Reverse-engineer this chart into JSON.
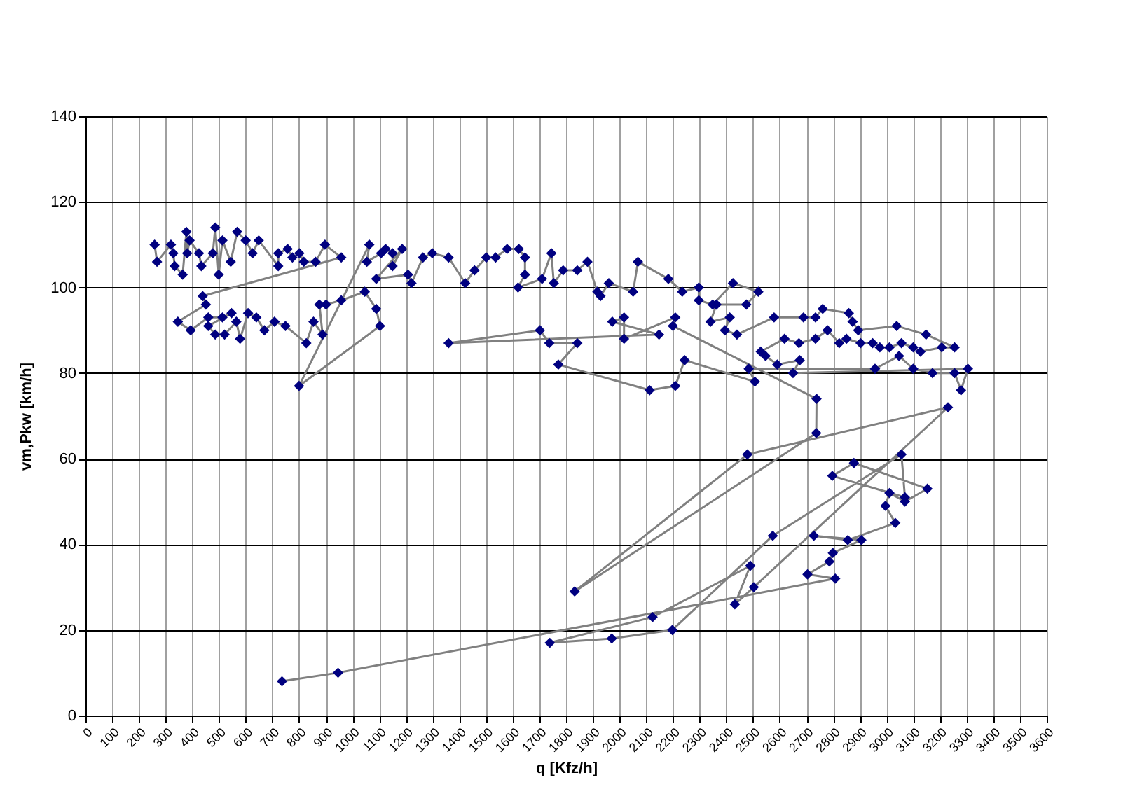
{
  "chart_data": {
    "type": "line",
    "xlabel": "q [Kfz/h]",
    "ylabel": "vm,Pkw [km/h]",
    "xlim": [
      0,
      3600
    ],
    "ylim": [
      0,
      140
    ],
    "xticks": [
      0,
      100,
      200,
      300,
      400,
      500,
      600,
      700,
      800,
      900,
      1000,
      1100,
      1200,
      1300,
      1400,
      1500,
      1600,
      1700,
      1800,
      1900,
      2000,
      2100,
      2200,
      2300,
      2400,
      2500,
      2600,
      2700,
      2800,
      2900,
      3000,
      3100,
      3200,
      3300,
      3400,
      3500,
      3600
    ],
    "yticks": [
      0,
      20,
      40,
      60,
      80,
      100,
      120,
      140
    ],
    "grid": true,
    "marker": "diamond",
    "x": [
      259,
      268,
      320,
      329,
      334,
      364,
      378,
      381,
      390,
      425,
      434,
      477,
      486,
      499,
      513,
      544,
      568,
      600,
      626,
      649,
      722,
      722,
      757,
      775,
      801,
      818,
      862,
      897,
      958,
      439,
      451,
      346,
      394,
      460,
      513,
      547,
      460,
      486,
      521,
      565,
      579,
      609,
      640,
      670,
      708,
      749,
      827,
      854,
      888,
      876,
      901,
      958,
      1046,
      1089,
      1103,
      800,
      1063,
      1054,
      1107,
      1124,
      1150,
      1150,
      1186,
      1089,
      1208,
      1221,
      1264,
      1299,
      1360,
      1422,
      1457,
      1501,
      1536,
      1579,
      1623,
      1646,
      1646,
      1620,
      1710,
      1745,
      1754,
      1789,
      1842,
      1880,
      1917,
      1929,
      1960,
      2051,
      2069,
      2183,
      2235,
      2297,
      2297,
      2349,
      2425,
      2520,
      2475,
      2363,
      2341,
      2413,
      2395,
      2440,
      2579,
      2689,
      2734,
      2761,
      2859,
      2873,
      2894,
      3038,
      3148,
      3255,
      3207,
      3127,
      3100,
      3056,
      3011,
      2975,
      2948,
      2903,
      2850,
      2823,
      2779,
      2734,
      2672,
      2618,
      2529,
      2547,
      2591,
      2675,
      2650,
      3305,
      3279,
      3255,
      3172,
      3100,
      3047,
      2957,
      2484,
      2507,
      2244,
      2209,
      2113,
      1771,
      1842,
      1737,
      1702,
      1360,
      2148,
      1973,
      2017,
      2017,
      2209,
      2200,
      2738,
      2737,
      1832,
      2479,
      3230,
      2503,
      2432,
      2490,
      2124,
      1739,
      1971,
      2198,
      2574,
      3056,
      3069,
      2797,
      2878,
      3153,
      3069,
      3011,
      2996,
      3033,
      2855,
      2728,
      2906,
      2799,
      2786,
      2704,
      2808,
      946,
      736
    ],
    "series": [
      {
        "color": "#000080",
        "values": [
          110,
          106,
          110,
          108,
          105,
          103,
          113,
          108,
          111,
          108,
          105,
          108,
          114,
          103,
          111,
          106,
          113,
          111,
          108,
          111,
          105,
          108,
          109,
          107,
          108,
          106,
          106,
          110,
          107,
          98,
          96,
          92,
          90,
          93,
          93,
          94,
          91,
          89,
          89,
          92,
          88,
          94,
          93,
          90,
          92,
          91,
          87,
          92,
          89,
          96,
          96,
          97,
          99,
          95,
          91,
          77,
          110,
          106,
          108,
          109,
          108,
          105,
          109,
          102,
          103,
          101,
          107,
          108,
          107,
          101,
          104,
          107,
          107,
          109,
          109,
          107,
          103,
          100,
          102,
          108,
          101,
          104,
          104,
          106,
          99,
          98,
          101,
          99,
          106,
          102,
          99,
          100,
          97,
          96,
          101,
          99,
          96,
          96,
          92,
          93,
          90,
          89,
          93,
          93,
          93,
          95,
          94,
          92,
          90,
          91,
          89,
          86,
          86,
          85,
          86,
          87,
          86,
          86,
          87,
          87,
          88,
          87,
          90,
          88,
          87,
          88,
          85,
          84,
          82,
          83,
          80,
          81,
          76,
          80,
          80,
          81,
          84,
          81,
          81,
          78,
          83,
          77,
          76,
          82,
          87,
          87,
          90,
          87,
          89,
          92,
          93,
          88,
          93,
          91,
          74,
          66,
          29,
          61,
          72,
          30,
          26,
          35,
          23,
          17,
          18,
          20,
          42,
          61,
          51,
          56,
          59,
          53,
          50,
          52,
          49,
          45,
          41,
          42,
          41,
          38,
          36,
          33,
          32,
          10,
          8
        ]
      }
    ]
  }
}
